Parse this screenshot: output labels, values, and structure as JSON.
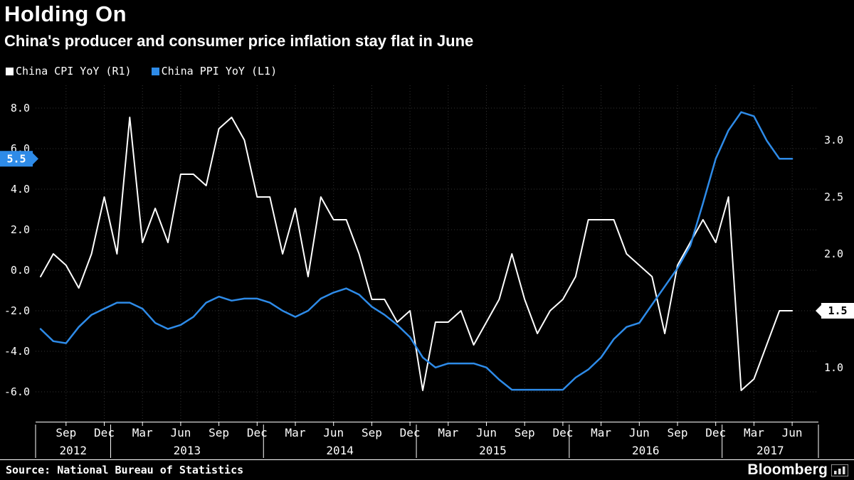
{
  "header": {
    "title": "Holding On",
    "subtitle": "China's producer and consumer price inflation stay flat in June"
  },
  "legend": {
    "items": [
      {
        "label": "China CPI YoY (R1)",
        "color": "#ffffff"
      },
      {
        "label": "China PPI YoY (L1)",
        "color": "#2e8be8"
      }
    ]
  },
  "footer": {
    "source": "Source: National Bureau of Statistics",
    "logo": "Bloomberg"
  },
  "chart_data": {
    "type": "line",
    "title": "Holding On",
    "subtitle": "China's producer and consumer price inflation stay flat in June",
    "background": "#000000",
    "grid": "dotted",
    "x_frequency": "monthly",
    "x_range": [
      "Jul 2012",
      "Jun 2017"
    ],
    "x_tick_labels": [
      "Sep",
      "Dec",
      "Mar",
      "Jun",
      "Sep",
      "Dec",
      "Mar",
      "Jun",
      "Sep",
      "Dec",
      "Mar",
      "Jun",
      "Sep",
      "Dec",
      "Mar",
      "Jun",
      "Sep",
      "Dec",
      "Mar",
      "Jun"
    ],
    "x_tick_indices": [
      2,
      5,
      8,
      11,
      14,
      17,
      20,
      23,
      26,
      29,
      32,
      35,
      38,
      41,
      44,
      47,
      50,
      53,
      56,
      59
    ],
    "year_labels": [
      "2012",
      "2013",
      "2014",
      "2015",
      "2016",
      "2017"
    ],
    "left_axis": {
      "ticks": [
        8,
        6,
        4,
        2,
        0,
        -2,
        -4,
        -6
      ],
      "tick_labels": [
        "8.0",
        "6.0",
        "4.0",
        "2.0",
        "0.0",
        "-2.0",
        "-4.0",
        "-6.0"
      ]
    },
    "right_axis": {
      "ticks": [
        3.0,
        2.5,
        2.0,
        1.5,
        1.0
      ],
      "tick_labels": [
        "3.0",
        "2.5",
        "2.0",
        "1.5",
        "1.0"
      ]
    },
    "series": [
      {
        "name": "China CPI YoY (R1)",
        "axis": "right",
        "color": "#ffffff",
        "last_value": 1.5,
        "values": [
          1.8,
          2.0,
          1.9,
          1.7,
          2.0,
          2.5,
          2.0,
          3.2,
          2.1,
          2.4,
          2.1,
          2.7,
          2.7,
          2.6,
          3.1,
          3.2,
          3.0,
          2.5,
          2.5,
          2.0,
          2.4,
          1.8,
          2.5,
          2.3,
          2.3,
          2.0,
          1.6,
          1.6,
          1.4,
          1.5,
          0.8,
          1.4,
          1.4,
          1.5,
          1.2,
          1.4,
          1.6,
          2.0,
          1.6,
          1.3,
          1.5,
          1.6,
          1.8,
          2.3,
          2.3,
          2.3,
          2.0,
          1.9,
          1.8,
          1.3,
          1.9,
          2.1,
          2.3,
          2.1,
          2.5,
          0.8,
          0.9,
          1.2,
          1.5,
          1.5
        ]
      },
      {
        "name": "China PPI YoY (L1)",
        "axis": "left",
        "color": "#2e8be8",
        "last_value": 5.5,
        "values": [
          -2.9,
          -3.5,
          -3.6,
          -2.8,
          -2.2,
          -1.9,
          -1.6,
          -1.6,
          -1.9,
          -2.6,
          -2.9,
          -2.7,
          -2.3,
          -1.6,
          -1.3,
          -1.5,
          -1.4,
          -1.4,
          -1.6,
          -2.0,
          -2.3,
          -2.0,
          -1.4,
          -1.1,
          -0.9,
          -1.2,
          -1.8,
          -2.2,
          -2.7,
          -3.3,
          -4.3,
          -4.8,
          -4.6,
          -4.6,
          -4.6,
          -4.8,
          -5.4,
          -5.9,
          -5.9,
          -5.9,
          -5.9,
          -5.9,
          -5.3,
          -4.9,
          -4.3,
          -3.4,
          -2.8,
          -2.6,
          -1.7,
          -0.8,
          0.1,
          1.2,
          3.3,
          5.5,
          6.9,
          7.8,
          7.6,
          6.4,
          5.5,
          5.5
        ]
      }
    ],
    "end_badges": [
      {
        "series": "China PPI YoY (L1)",
        "axis": "left",
        "side": "left",
        "label": "5.5",
        "value": 5.5,
        "color": "#2e8be8",
        "text_color": "#ffffff"
      },
      {
        "series": "China CPI YoY (R1)",
        "axis": "right",
        "side": "right",
        "label": "1.5",
        "value": 1.5,
        "color": "#ffffff",
        "text_color": "#000000"
      }
    ]
  }
}
